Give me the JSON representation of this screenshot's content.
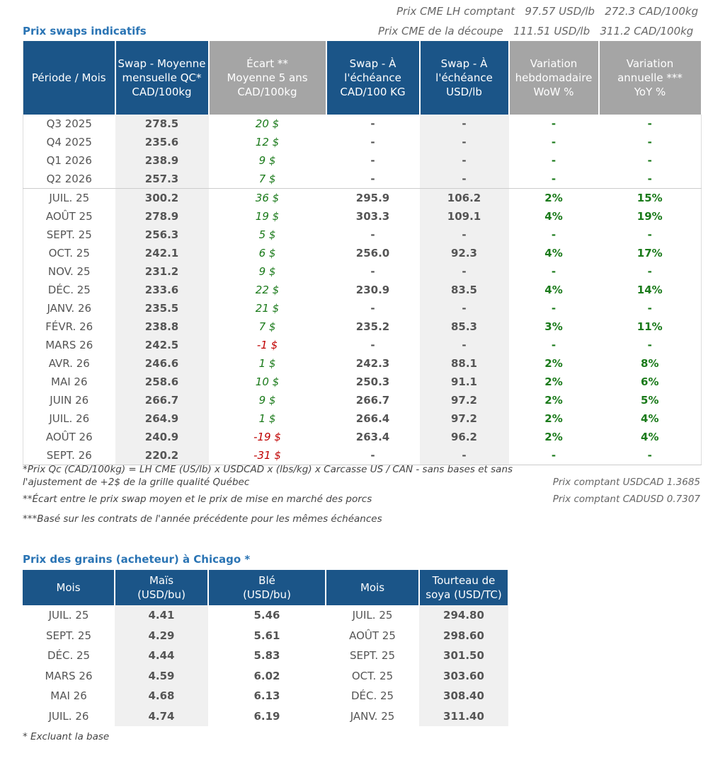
{
  "cme": [
    {
      "label": "Prix CME LH comptant",
      "usd": "97.57 USD/lb",
      "cad": "272.3 CAD/100kg"
    },
    {
      "label": "Prix CME de la découpe",
      "usd": "111.51 USD/lb",
      "cad": "311.2 CAD/100kg"
    }
  ],
  "swaps": {
    "title": "Prix swaps indicatifs",
    "headers": [
      [
        "Période / Mois"
      ],
      [
        "Swap - Moyenne",
        "mensuelle QC*",
        "CAD/100kg"
      ],
      [
        "Écart **",
        "Moyenne 5 ans",
        "CAD/100kg"
      ],
      [
        "Swap - À",
        "l'échéance",
        "CAD/100 KG"
      ],
      [
        "Swap - À",
        "l'échéance",
        "USD/lb"
      ],
      [
        "Variation",
        "hebdomadaire",
        "WoW %"
      ],
      [
        "Variation",
        "annuelle ***",
        "YoY %"
      ]
    ],
    "quarters": [
      [
        "Q3 2025",
        "278.5",
        "20 $",
        "-",
        "-",
        "-",
        "-"
      ],
      [
        "Q4 2025",
        "235.6",
        "12 $",
        "-",
        "-",
        "-",
        "-"
      ],
      [
        "Q1 2026",
        "238.9",
        "9 $",
        "-",
        "-",
        "-",
        "-"
      ],
      [
        "Q2 2026",
        "257.3",
        "7 $",
        "-",
        "-",
        "-",
        "-"
      ]
    ],
    "months": [
      [
        "JUIL. 25",
        "300.2",
        "36 $",
        "295.9",
        "106.2",
        "2%",
        "15%"
      ],
      [
        "AOÛT 25",
        "278.9",
        "19 $",
        "303.3",
        "109.1",
        "4%",
        "19%"
      ],
      [
        "SEPT. 25",
        "256.3",
        "5 $",
        "-",
        "-",
        "-",
        "-"
      ],
      [
        "OCT. 25",
        "242.1",
        "6 $",
        "256.0",
        "92.3",
        "4%",
        "17%"
      ],
      [
        "NOV. 25",
        "231.2",
        "9 $",
        "-",
        "-",
        "-",
        "-"
      ],
      [
        "DÉC. 25",
        "233.6",
        "22 $",
        "230.9",
        "83.5",
        "4%",
        "14%"
      ],
      [
        "JANV. 26",
        "235.5",
        "21 $",
        "-",
        "-",
        "-",
        "-"
      ],
      [
        "FÉVR. 26",
        "238.8",
        "7 $",
        "235.2",
        "85.3",
        "3%",
        "11%"
      ],
      [
        "MARS 26",
        "242.5",
        "-1 $",
        "-",
        "-",
        "-",
        "-"
      ],
      [
        "AVR. 26",
        "246.6",
        "1 $",
        "242.3",
        "88.1",
        "2%",
        "8%"
      ],
      [
        "MAI 26",
        "258.6",
        "10 $",
        "250.3",
        "91.1",
        "2%",
        "6%"
      ],
      [
        "JUIN 26",
        "266.7",
        "9 $",
        "266.7",
        "97.2",
        "2%",
        "5%"
      ],
      [
        "JUIL. 26",
        "264.9",
        "1 $",
        "266.4",
        "97.2",
        "2%",
        "4%"
      ],
      [
        "AOÛT 26",
        "240.9",
        "-19 $",
        "263.4",
        "96.2",
        "2%",
        "4%"
      ],
      [
        "SEPT. 26",
        "220.2",
        "-31 $",
        "-",
        "-",
        "-",
        "-"
      ]
    ]
  },
  "notes": [
    "*Prix Qc (CAD/100kg) = LH CME (US/lb) x USDCAD x (lbs/kg) x Carcasse US / CAN - sans bases et sans l'ajustement de +2$ de la grille qualité Québec",
    "**Écart entre le prix swap moyen et le prix de mise en marché des porcs",
    "***Basé sur les contrats de l'année précédente pour les mêmes échéances"
  ],
  "fx": [
    "Prix comptant USDCAD 1.3685",
    "Prix comptant CADUSD 0.7307"
  ],
  "grains": {
    "title": "Prix des grains (acheteur) à Chicago *",
    "headers": [
      [
        "Mois"
      ],
      [
        "Maïs",
        "(USD/bu)"
      ],
      [
        "Blé",
        "(USD/bu)"
      ],
      [
        "Mois"
      ],
      [
        "Tourteau de",
        "soya (USD/TC)"
      ]
    ],
    "rows": [
      [
        "JUIL. 25",
        "4.41",
        "5.46",
        "JUIL. 25",
        "294.80"
      ],
      [
        "SEPT. 25",
        "4.29",
        "5.61",
        "AOÛT 25",
        "298.60"
      ],
      [
        "DÉC. 25",
        "4.44",
        "5.83",
        "SEPT. 25",
        "301.50"
      ],
      [
        "MARS 26",
        "4.59",
        "6.02",
        "OCT. 25",
        "303.60"
      ],
      [
        "MAI 26",
        "4.68",
        "6.13",
        "DÉC. 25",
        "308.40"
      ],
      [
        "JUIL. 26",
        "4.74",
        "6.19",
        "JANV. 25",
        "311.40"
      ]
    ],
    "note": "* Excluant la base"
  }
}
